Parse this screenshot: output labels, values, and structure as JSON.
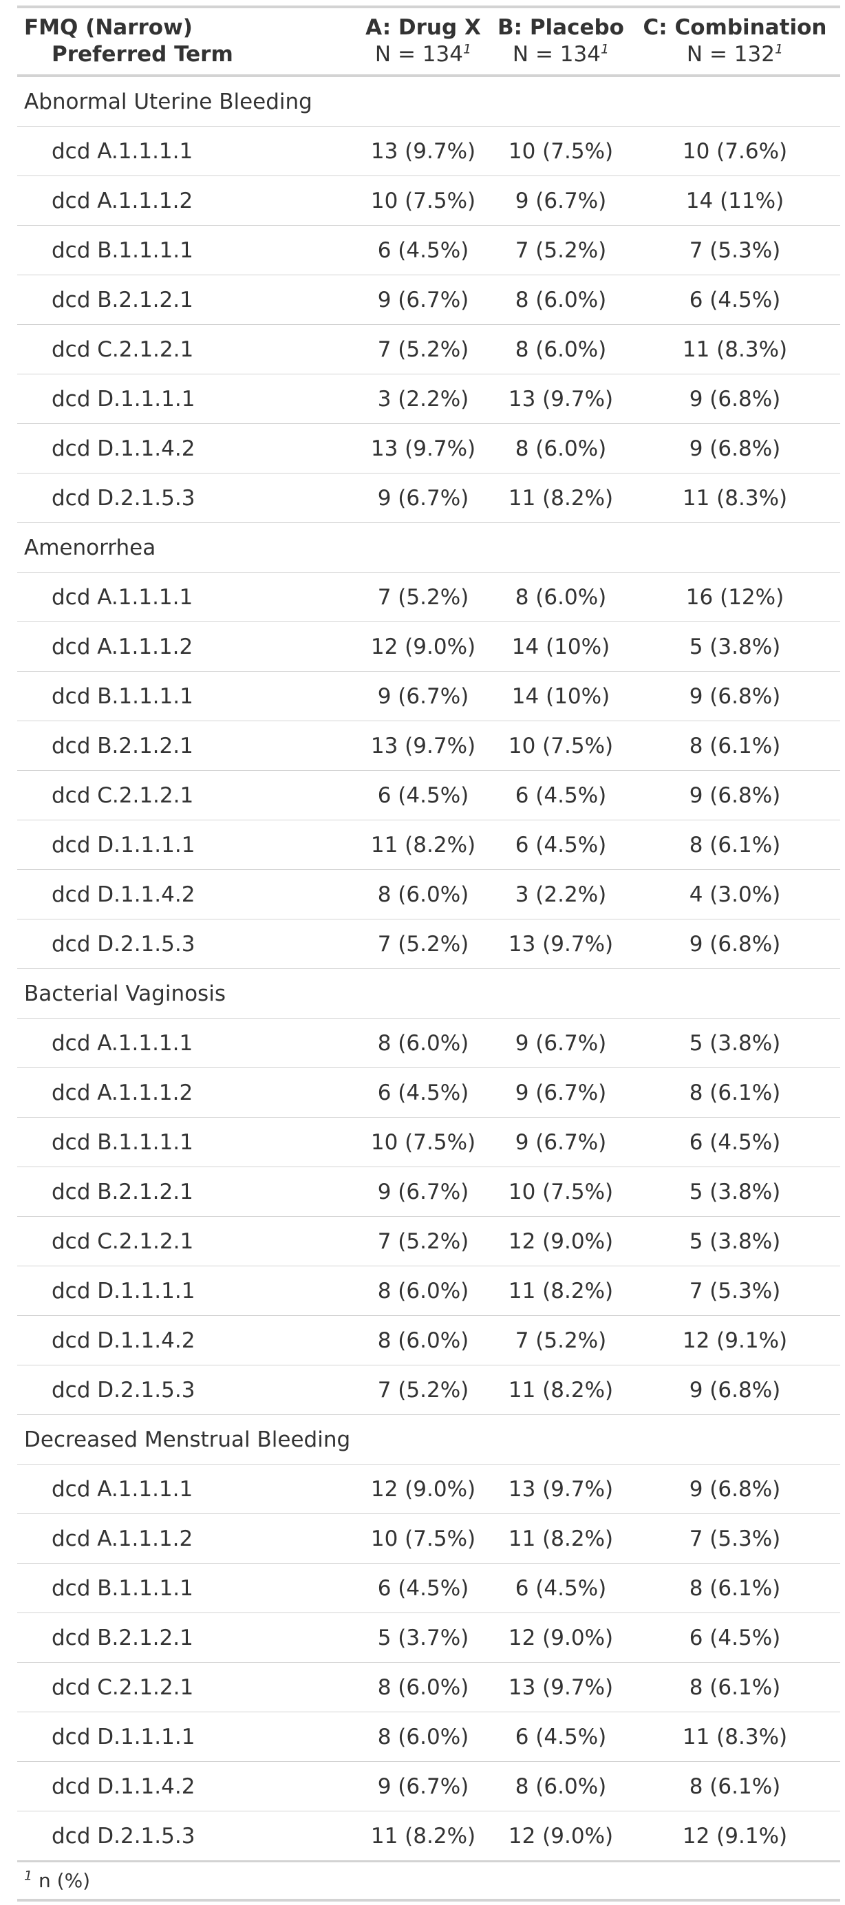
{
  "header": {
    "term_title": "FMQ (Narrow)",
    "term_subtitle": "Preferred Term",
    "footnote_mark": "1",
    "columns": [
      {
        "title": "A: Drug X",
        "n_label": "N = 134"
      },
      {
        "title": "B: Placebo",
        "n_label": "N = 134"
      },
      {
        "title": "C: Combination",
        "n_label": "N = 132"
      }
    ]
  },
  "groups": [
    {
      "name": "Abnormal Uterine Bleeding",
      "rows": [
        {
          "term": "dcd A.1.1.1.1",
          "values": [
            "13 (9.7%)",
            "10 (7.5%)",
            "10 (7.6%)"
          ]
        },
        {
          "term": "dcd A.1.1.1.2",
          "values": [
            "10 (7.5%)",
            "9 (6.7%)",
            "14 (11%)"
          ]
        },
        {
          "term": "dcd B.1.1.1.1",
          "values": [
            "6 (4.5%)",
            "7 (5.2%)",
            "7 (5.3%)"
          ]
        },
        {
          "term": "dcd B.2.1.2.1",
          "values": [
            "9 (6.7%)",
            "8 (6.0%)",
            "6 (4.5%)"
          ]
        },
        {
          "term": "dcd C.2.1.2.1",
          "values": [
            "7 (5.2%)",
            "8 (6.0%)",
            "11 (8.3%)"
          ]
        },
        {
          "term": "dcd D.1.1.1.1",
          "values": [
            "3 (2.2%)",
            "13 (9.7%)",
            "9 (6.8%)"
          ]
        },
        {
          "term": "dcd D.1.1.4.2",
          "values": [
            "13 (9.7%)",
            "8 (6.0%)",
            "9 (6.8%)"
          ]
        },
        {
          "term": "dcd D.2.1.5.3",
          "values": [
            "9 (6.7%)",
            "11 (8.2%)",
            "11 (8.3%)"
          ]
        }
      ]
    },
    {
      "name": "Amenorrhea",
      "rows": [
        {
          "term": "dcd A.1.1.1.1",
          "values": [
            "7 (5.2%)",
            "8 (6.0%)",
            "16 (12%)"
          ]
        },
        {
          "term": "dcd A.1.1.1.2",
          "values": [
            "12 (9.0%)",
            "14 (10%)",
            "5 (3.8%)"
          ]
        },
        {
          "term": "dcd B.1.1.1.1",
          "values": [
            "9 (6.7%)",
            "14 (10%)",
            "9 (6.8%)"
          ]
        },
        {
          "term": "dcd B.2.1.2.1",
          "values": [
            "13 (9.7%)",
            "10 (7.5%)",
            "8 (6.1%)"
          ]
        },
        {
          "term": "dcd C.2.1.2.1",
          "values": [
            "6 (4.5%)",
            "6 (4.5%)",
            "9 (6.8%)"
          ]
        },
        {
          "term": "dcd D.1.1.1.1",
          "values": [
            "11 (8.2%)",
            "6 (4.5%)",
            "8 (6.1%)"
          ]
        },
        {
          "term": "dcd D.1.1.4.2",
          "values": [
            "8 (6.0%)",
            "3 (2.2%)",
            "4 (3.0%)"
          ]
        },
        {
          "term": "dcd D.2.1.5.3",
          "values": [
            "7 (5.2%)",
            "13 (9.7%)",
            "9 (6.8%)"
          ]
        }
      ]
    },
    {
      "name": "Bacterial Vaginosis",
      "rows": [
        {
          "term": "dcd A.1.1.1.1",
          "values": [
            "8 (6.0%)",
            "9 (6.7%)",
            "5 (3.8%)"
          ]
        },
        {
          "term": "dcd A.1.1.1.2",
          "values": [
            "6 (4.5%)",
            "9 (6.7%)",
            "8 (6.1%)"
          ]
        },
        {
          "term": "dcd B.1.1.1.1",
          "values": [
            "10 (7.5%)",
            "9 (6.7%)",
            "6 (4.5%)"
          ]
        },
        {
          "term": "dcd B.2.1.2.1",
          "values": [
            "9 (6.7%)",
            "10 (7.5%)",
            "5 (3.8%)"
          ]
        },
        {
          "term": "dcd C.2.1.2.1",
          "values": [
            "7 (5.2%)",
            "12 (9.0%)",
            "5 (3.8%)"
          ]
        },
        {
          "term": "dcd D.1.1.1.1",
          "values": [
            "8 (6.0%)",
            "11 (8.2%)",
            "7 (5.3%)"
          ]
        },
        {
          "term": "dcd D.1.1.4.2",
          "values": [
            "8 (6.0%)",
            "7 (5.2%)",
            "12 (9.1%)"
          ]
        },
        {
          "term": "dcd D.2.1.5.3",
          "values": [
            "7 (5.2%)",
            "11 (8.2%)",
            "9 (6.8%)"
          ]
        }
      ]
    },
    {
      "name": "Decreased Menstrual Bleeding",
      "rows": [
        {
          "term": "dcd A.1.1.1.1",
          "values": [
            "12 (9.0%)",
            "13 (9.7%)",
            "9 (6.8%)"
          ]
        },
        {
          "term": "dcd A.1.1.1.2",
          "values": [
            "10 (7.5%)",
            "11 (8.2%)",
            "7 (5.3%)"
          ]
        },
        {
          "term": "dcd B.1.1.1.1",
          "values": [
            "6 (4.5%)",
            "6 (4.5%)",
            "8 (6.1%)"
          ]
        },
        {
          "term": "dcd B.2.1.2.1",
          "values": [
            "5 (3.7%)",
            "12 (9.0%)",
            "6 (4.5%)"
          ]
        },
        {
          "term": "dcd C.2.1.2.1",
          "values": [
            "8 (6.0%)",
            "13 (9.7%)",
            "8 (6.1%)"
          ]
        },
        {
          "term": "dcd D.1.1.1.1",
          "values": [
            "8 (6.0%)",
            "6 (4.5%)",
            "11 (8.3%)"
          ]
        },
        {
          "term": "dcd D.1.1.4.2",
          "values": [
            "9 (6.7%)",
            "8 (6.0%)",
            "8 (6.1%)"
          ]
        },
        {
          "term": "dcd D.2.1.5.3",
          "values": [
            "11 (8.2%)",
            "12 (9.0%)",
            "12 (9.1%)"
          ]
        }
      ]
    }
  ],
  "footnote": {
    "mark": "1",
    "text": "n (%)"
  },
  "colors": {
    "text": "#333333",
    "rule": "#d3d3d3",
    "background": "#ffffff"
  }
}
